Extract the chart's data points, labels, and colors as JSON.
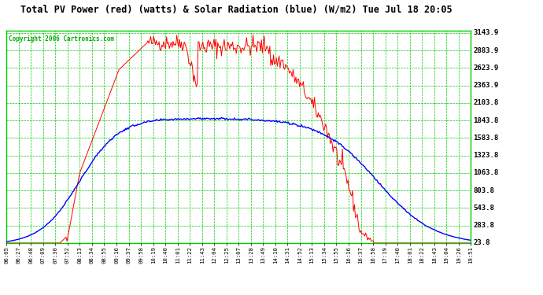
{
  "title": "Total PV Power (red) (watts) & Solar Radiation (blue) (W/m2) Tue Jul 18 20:05",
  "copyright": "Copyright 2006 Cartronics.com",
  "bg_color": "#ffffff",
  "plot_bg_color": "#ffffff",
  "title_color": "#000000",
  "copyright_color": "#00aa00",
  "grid_color": "#00cc00",
  "red_color": "#ff0000",
  "blue_color": "#0000ff",
  "border_color": "#00cc00",
  "y_min": 23.8,
  "y_max": 3143.9,
  "yticks": [
    23.8,
    283.8,
    543.8,
    803.8,
    1063.8,
    1323.8,
    1583.8,
    1843.8,
    2103.8,
    2363.9,
    2623.9,
    2883.9,
    3143.9
  ],
  "xtick_labels": [
    "06:05",
    "06:27",
    "06:48",
    "07:09",
    "07:30",
    "07:52",
    "08:13",
    "08:34",
    "08:55",
    "09:16",
    "09:37",
    "09:58",
    "10:19",
    "10:40",
    "11:01",
    "11:22",
    "11:43",
    "12:04",
    "12:25",
    "13:07",
    "13:28",
    "13:49",
    "14:10",
    "14:31",
    "14:52",
    "15:13",
    "15:34",
    "15:55",
    "16:16",
    "16:37",
    "16:58",
    "17:19",
    "17:40",
    "18:01",
    "18:22",
    "18:43",
    "19:04",
    "19:26",
    "19:51"
  ]
}
